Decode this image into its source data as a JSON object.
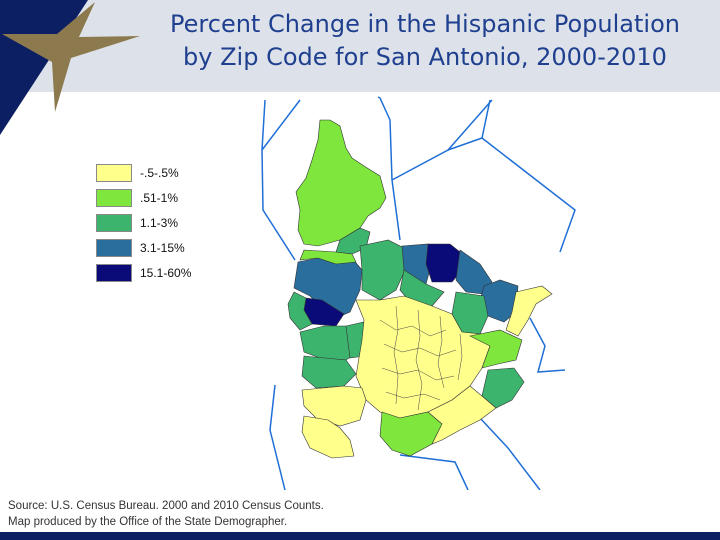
{
  "title": {
    "line1": "Percent Change in the Hispanic Population",
    "line2": "by Zip Code for San Antonio, 2000-2010"
  },
  "legend": [
    {
      "label": "-.5-.5%",
      "color": "#ffff8c"
    },
    {
      "label": ".51-1%",
      "color": "#7ee63c"
    },
    {
      "label": "1.1-3%",
      "color": "#3cb46e"
    },
    {
      "label": "3.1-15%",
      "color": "#2a6e9e"
    },
    {
      "label": "15.1-60%",
      "color": "#0a0a78"
    }
  ],
  "source": {
    "line1": "Source: U.S. Census Bureau. 2000 and 2010 Census Counts.",
    "line2": "Map produced by the Office of the State Demographer."
  },
  "colors": {
    "header_bg": "#dde2ea",
    "star": "#8c7a4e",
    "corner": "#0c1f63",
    "title": "#1f3f8f",
    "county_lines": "#1f6fd6",
    "footer": "#0c1f63"
  },
  "icons": [
    "star-logo-icon"
  ]
}
